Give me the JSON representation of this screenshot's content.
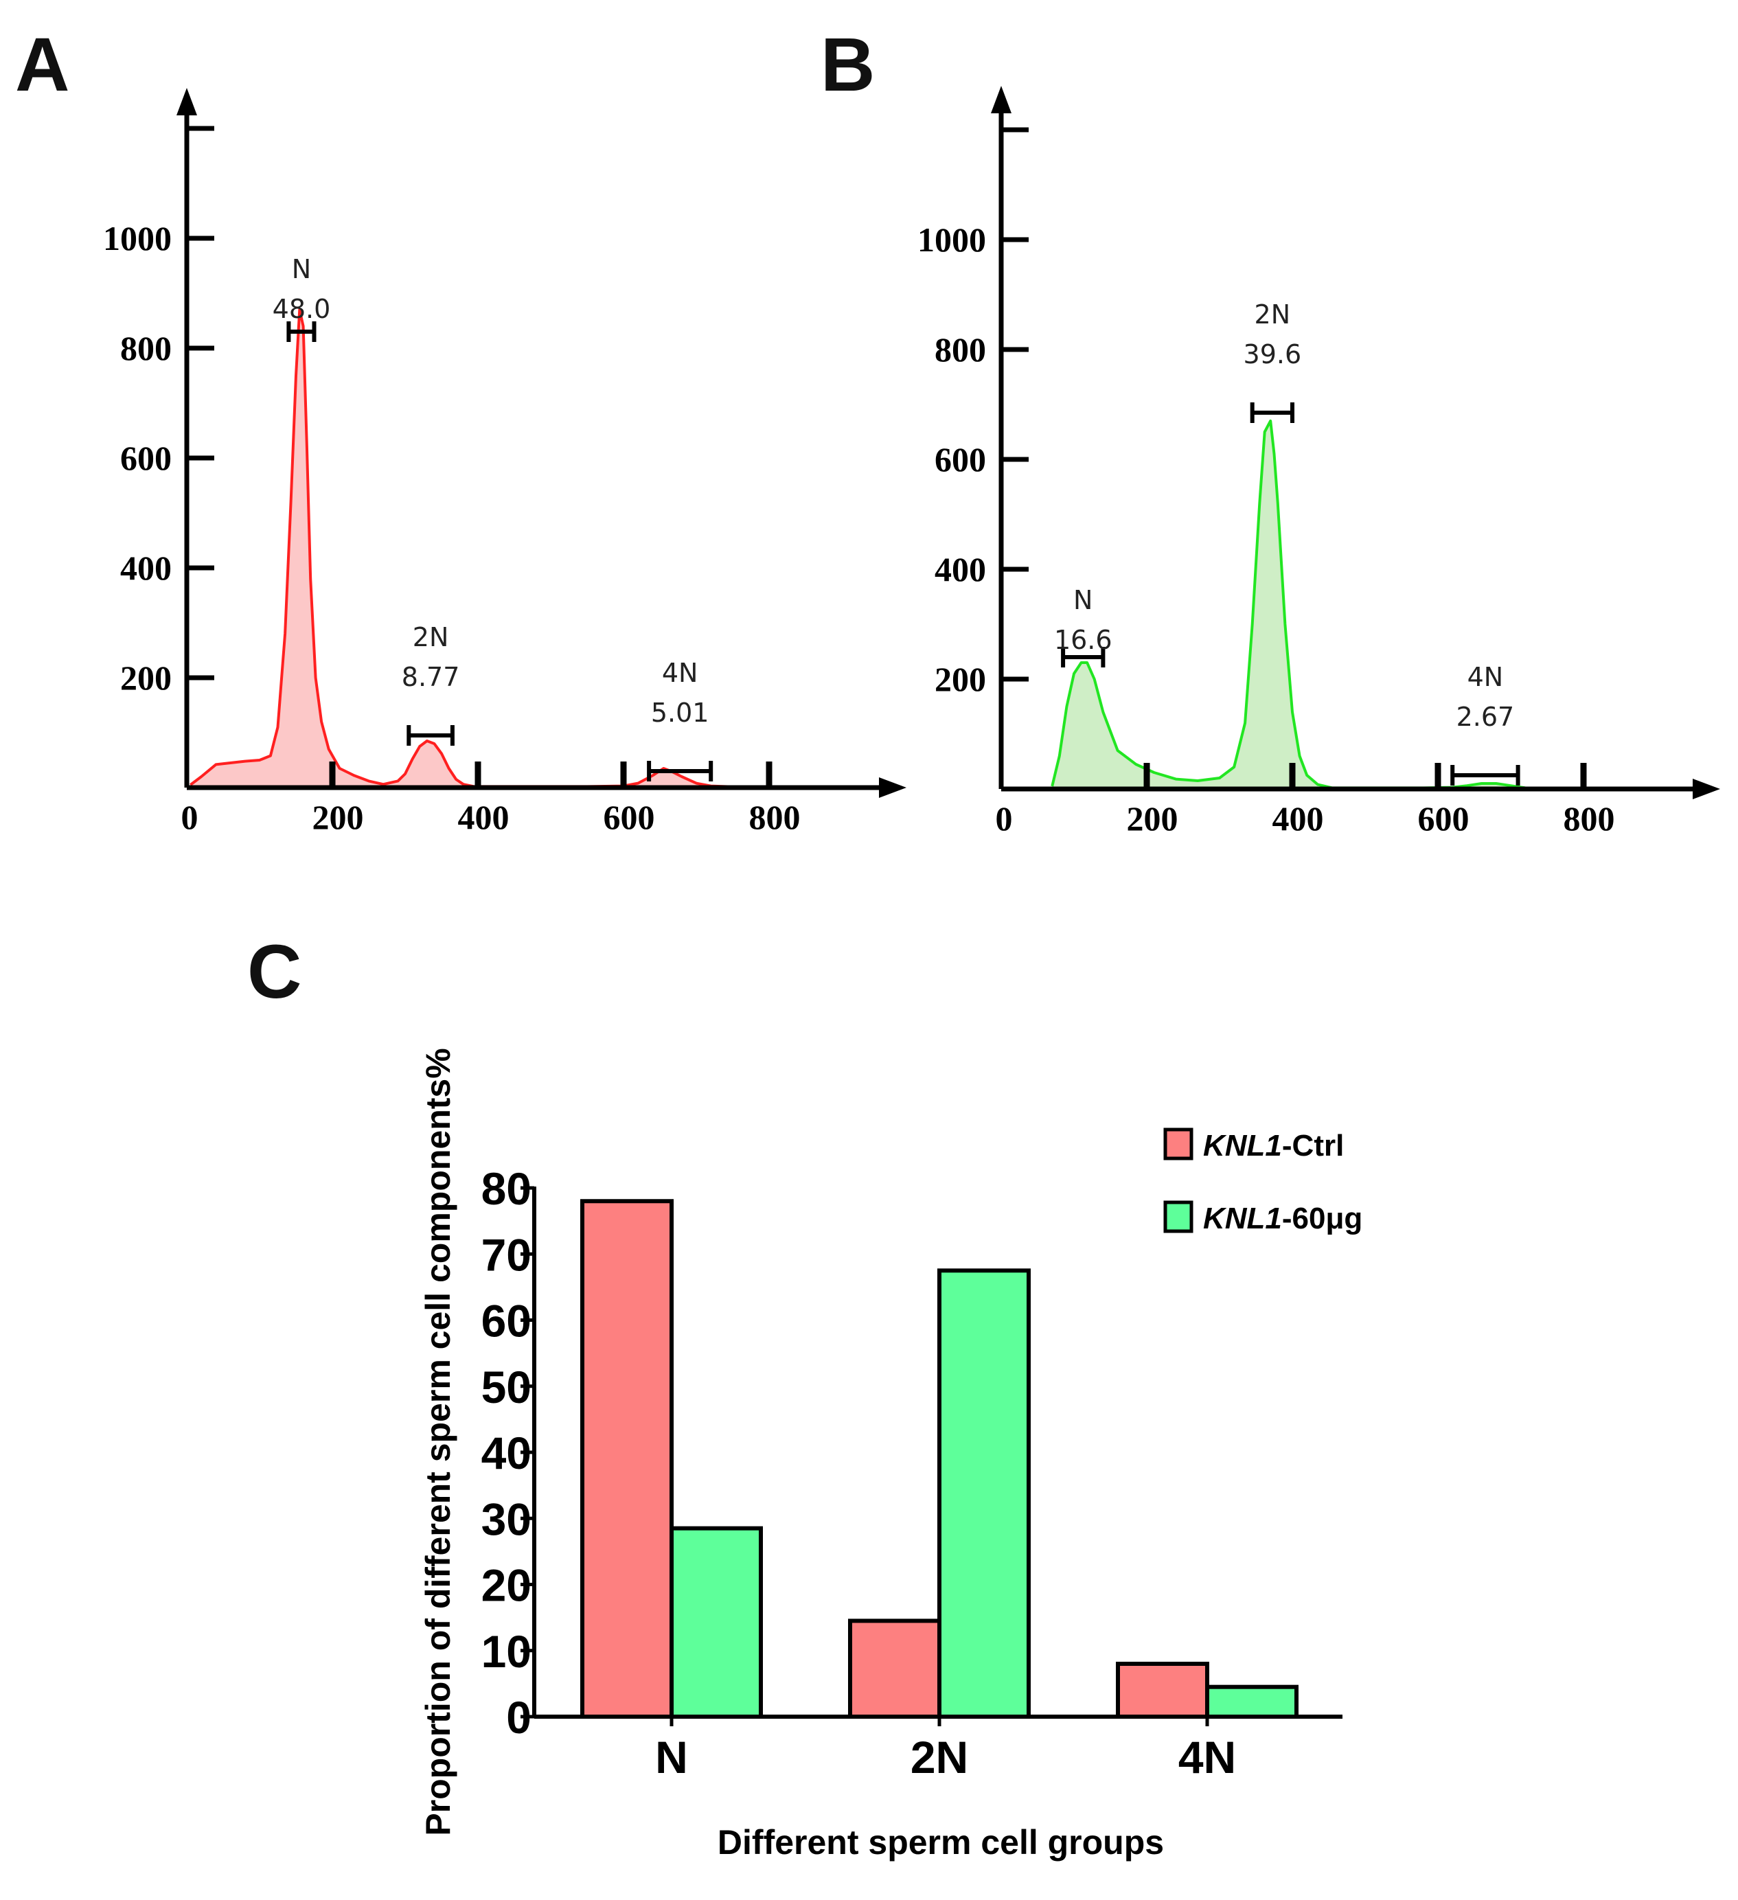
{
  "panels": {
    "a": {
      "letter": "A"
    },
    "b": {
      "letter": "B"
    },
    "c": {
      "letter": "C"
    }
  },
  "chart_data": [
    {
      "id": "histA",
      "type": "area",
      "panel": "A",
      "color": "#ff2020",
      "fill": "#fcc8c8",
      "xlim": [
        0,
        960
      ],
      "ylim": [
        0,
        1200
      ],
      "xticks": [
        0,
        200,
        400,
        600,
        800
      ],
      "xtick_labels": [
        "0",
        "200",
        "400",
        "600",
        "800"
      ],
      "yticks": [
        200,
        400,
        600,
        800,
        1000
      ],
      "ytick_labels": [
        "200",
        "400",
        "600",
        "800",
        "1000"
      ],
      "x": [
        5,
        20,
        40,
        60,
        80,
        100,
        115,
        125,
        135,
        143,
        150,
        155,
        160,
        165,
        170,
        177,
        185,
        195,
        210,
        230,
        250,
        270,
        290,
        300,
        310,
        320,
        330,
        340,
        350,
        360,
        370,
        380,
        395,
        420,
        480,
        550,
        600,
        620,
        640,
        655,
        665,
        680,
        700,
        720,
        740,
        760
      ],
      "y": [
        5,
        20,
        42,
        45,
        48,
        50,
        58,
        110,
        280,
        520,
        750,
        870,
        840,
        620,
        380,
        200,
        120,
        70,
        35,
        22,
        12,
        6,
        12,
        25,
        52,
        75,
        85,
        80,
        62,
        35,
        15,
        6,
        2,
        2,
        2,
        2,
        3,
        8,
        22,
        35,
        30,
        20,
        8,
        3,
        2,
        1
      ],
      "gates": [
        {
          "name": "N",
          "value": "48.0",
          "x1": 140,
          "x2": 175,
          "y": 830
        },
        {
          "name": "2N",
          "value": "8.77",
          "x1": 305,
          "x2": 365,
          "y": 95
        },
        {
          "name": "4N",
          "value": "5.01",
          "x1": 635,
          "x2": 720,
          "y": 30
        }
      ]
    },
    {
      "id": "histB",
      "type": "area",
      "panel": "B",
      "color": "#22e622",
      "fill": "#cfeec6",
      "xlim": [
        0,
        960
      ],
      "ylim": [
        0,
        1200
      ],
      "xticks": [
        0,
        200,
        400,
        600,
        800
      ],
      "xtick_labels": [
        "0",
        "200",
        "400",
        "600",
        "800"
      ],
      "yticks": [
        200,
        400,
        600,
        800,
        1000
      ],
      "ytick_labels": [
        "200",
        "400",
        "600",
        "800",
        "1000"
      ],
      "x": [
        70,
        80,
        90,
        100,
        110,
        118,
        128,
        140,
        160,
        185,
        210,
        240,
        270,
        300,
        320,
        335,
        345,
        355,
        362,
        370,
        375,
        380,
        390,
        400,
        410,
        420,
        435,
        455,
        520,
        580,
        620,
        640,
        660,
        680,
        700,
        720,
        760
      ],
      "y": [
        5,
        60,
        150,
        210,
        230,
        230,
        200,
        140,
        70,
        45,
        30,
        18,
        15,
        20,
        40,
        120,
        300,
        520,
        650,
        670,
        610,
        520,
        300,
        140,
        60,
        25,
        8,
        2,
        2,
        2,
        3,
        6,
        10,
        10,
        6,
        2,
        1
      ],
      "gates": [
        {
          "name": "N",
          "value": "16.6",
          "x1": 85,
          "x2": 140,
          "y": 240
        },
        {
          "name": "2N",
          "value": "39.6",
          "x1": 345,
          "x2": 400,
          "y": 685
        },
        {
          "name": "4N",
          "value": "2.67",
          "x1": 620,
          "x2": 710,
          "y": 25
        }
      ]
    },
    {
      "id": "barC",
      "type": "bar",
      "panel": "C",
      "categories": [
        "N",
        "2N",
        "4N"
      ],
      "series": [
        {
          "name": "KNL1-Ctrl",
          "name_italic": "KNL1",
          "name_suffix": "-Ctrl",
          "color": "#fd8080",
          "values": [
            78,
            14.5,
            8
          ]
        },
        {
          "name": "KNL1-60μg",
          "name_italic": "KNL1",
          "name_suffix": "-60μg",
          "color": "#5eff9a",
          "values": [
            28.5,
            67.5,
            4.5
          ]
        }
      ],
      "ylim": [
        0,
        80
      ],
      "yticks": [
        0,
        10,
        20,
        30,
        40,
        50,
        60,
        70,
        80
      ],
      "xlabel": "Different sperm cell groups",
      "ylabel": "Proportion of different sperm cell components%",
      "legend_position": "top-right"
    }
  ]
}
